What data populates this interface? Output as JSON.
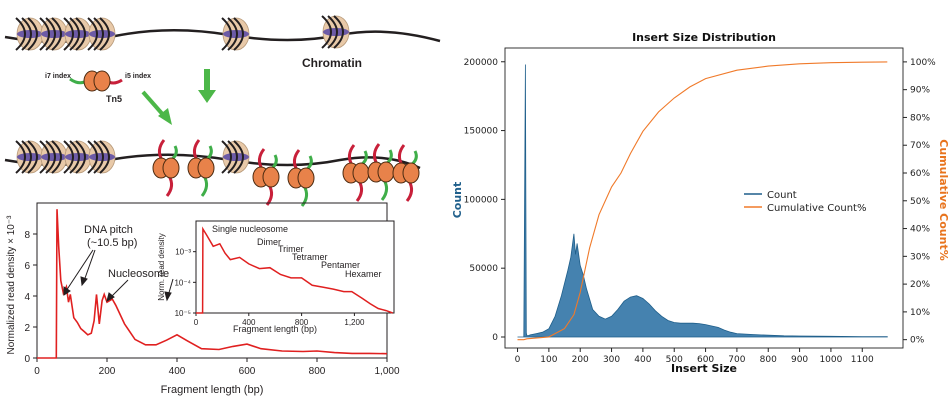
{
  "diagram": {
    "chromatin_label": "Chromatin",
    "i7_label": "i7 index",
    "i5_label": "i5 index",
    "tn5_label": "Tn5"
  },
  "colors": {
    "dna": "#231f20",
    "nucleosome": "#e8c9a8",
    "histone_band": "#6c5aa6",
    "tn5": "#e8824a",
    "i7_adapter": "#3fae49",
    "i5_adapter": "#c8203a",
    "arrow": "#4cb748",
    "density_line": "#e02020",
    "count_fill": "#3b7bab",
    "count_line": "#1f5f8b",
    "cumulative_line": "#f07a2a",
    "left_axis_title": "#1f5f8b",
    "right_axis_title": "#e8741e"
  },
  "chart_data": [
    {
      "type": "line",
      "title": "",
      "xlabel": "Fragment length (bp)",
      "ylabel": "Normalized read density × 10⁻³",
      "xlim": [
        0,
        1000
      ],
      "ylim": [
        0,
        10
      ],
      "xticks": [
        "0",
        "200",
        "400",
        "600",
        "800",
        "1,000"
      ],
      "yticks": [
        "0",
        "2",
        "4",
        "6",
        "8"
      ],
      "x": [
        0,
        55,
        57,
        62,
        68,
        75,
        84,
        90,
        95,
        105,
        115,
        125,
        135,
        145,
        155,
        163,
        170,
        178,
        186,
        192,
        200,
        215,
        225,
        250,
        280,
        310,
        340,
        370,
        400,
        430,
        470,
        520,
        560,
        600,
        640,
        700,
        760,
        800,
        850,
        900,
        950,
        1000
      ],
      "y": [
        0,
        0,
        9.6,
        7.2,
        5.0,
        4.2,
        4.6,
        3.6,
        4.1,
        2.6,
        2.3,
        1.9,
        1.7,
        1.5,
        1.6,
        2.4,
        4.1,
        2.2,
        3.7,
        4.1,
        3.6,
        3.8,
        3.4,
        2.2,
        1.2,
        0.85,
        0.85,
        1.15,
        1.5,
        1.1,
        0.6,
        0.55,
        0.75,
        0.9,
        0.6,
        0.45,
        0.42,
        0.45,
        0.35,
        0.3,
        0.3,
        0.28
      ],
      "annotations": [
        "DNA pitch",
        "(~10.5 bp)",
        "Nucleosome"
      ]
    },
    {
      "type": "line",
      "title": "",
      "xlabel": "Fragment length (bp)",
      "ylabel": "Norm. read density",
      "y_scale": "log",
      "xlim": [
        0,
        1500
      ],
      "ylim": [
        1e-05,
        0.01
      ],
      "xticks": [
        "0",
        "400",
        "800",
        "1,200"
      ],
      "yticks": [
        "10⁻⁵",
        "10⁻⁴",
        "10⁻³"
      ],
      "x": [
        0,
        50,
        52,
        80,
        130,
        180,
        220,
        260,
        330,
        400,
        480,
        560,
        640,
        720,
        800,
        880,
        960,
        1040,
        1120,
        1180,
        1260,
        1320,
        1380,
        1440,
        1490
      ],
      "y": [
        0,
        0,
        0.0055,
        0.0035,
        0.0015,
        0.0018,
        0.0009,
        0.00055,
        0.00065,
        0.0004,
        0.00028,
        0.0003,
        0.00018,
        0.00014,
        0.00014,
        8e-05,
        7e-05,
        6e-05,
        5e-05,
        5e-05,
        3e-05,
        2e-05,
        1.4e-05,
        1.2e-05,
        1e-05
      ],
      "annotations": [
        "Single nucleosome",
        "Dimer",
        "Trimer",
        "Tetramer",
        "Pentamer",
        "Hexamer"
      ]
    },
    {
      "type": "area",
      "title": "Insert Size Distribution",
      "xlabel": "Insert Size",
      "ylabel": "Count",
      "y2label": "Cumulative Count%",
      "xlim": [
        -40,
        1230
      ],
      "ylim": [
        -8000,
        210000
      ],
      "y2lim": [
        -0.03,
        1.05
      ],
      "xticks": [
        "0",
        "100",
        "200",
        "300",
        "400",
        "500",
        "600",
        "700",
        "800",
        "900",
        "1000",
        "1100"
      ],
      "yticks": [
        "0",
        "50000",
        "100000",
        "150000",
        "200000"
      ],
      "y2ticks": [
        "0%",
        "10%",
        "20%",
        "30%",
        "40%",
        "50%",
        "60%",
        "70%",
        "80%",
        "90%",
        "100%"
      ],
      "legend": {
        "location": "center-right",
        "entries": [
          "Count",
          "Cumulative Count%"
        ]
      },
      "series": [
        {
          "name": "Count",
          "x": [
            0,
            20,
            25,
            28,
            30,
            35,
            40,
            60,
            80,
            100,
            120,
            140,
            160,
            170,
            180,
            185,
            190,
            200,
            210,
            220,
            240,
            260,
            280,
            300,
            320,
            340,
            360,
            380,
            400,
            420,
            440,
            460,
            480,
            500,
            520,
            540,
            560,
            580,
            600,
            620,
            640,
            660,
            680,
            700,
            750,
            800,
            850,
            900,
            1000,
            1100,
            1180
          ],
          "values": [
            0,
            0,
            198000,
            3000,
            1000,
            1000,
            1500,
            2500,
            3500,
            6000,
            15000,
            30000,
            48000,
            58000,
            75000,
            60000,
            68000,
            52000,
            45000,
            35000,
            20000,
            15000,
            13000,
            15000,
            20000,
            26000,
            29000,
            30000,
            28000,
            24000,
            19000,
            15000,
            12000,
            10500,
            10000,
            10000,
            10000,
            9700,
            9000,
            8000,
            7000,
            5000,
            3500,
            2500,
            1800,
            1300,
            900,
            700,
            500,
            300,
            200
          ]
        },
        {
          "name": "Cumulative Count%",
          "x": [
            0,
            20,
            30,
            100,
            150,
            180,
            200,
            230,
            260,
            300,
            330,
            360,
            400,
            450,
            500,
            550,
            600,
            700,
            800,
            900,
            1000,
            1100,
            1180
          ],
          "values": [
            0,
            0,
            0.003,
            0.01,
            0.04,
            0.09,
            0.17,
            0.33,
            0.45,
            0.55,
            0.6,
            0.67,
            0.75,
            0.82,
            0.87,
            0.91,
            0.94,
            0.97,
            0.985,
            0.993,
            0.997,
            0.999,
            1.0
          ]
        }
      ]
    }
  ]
}
